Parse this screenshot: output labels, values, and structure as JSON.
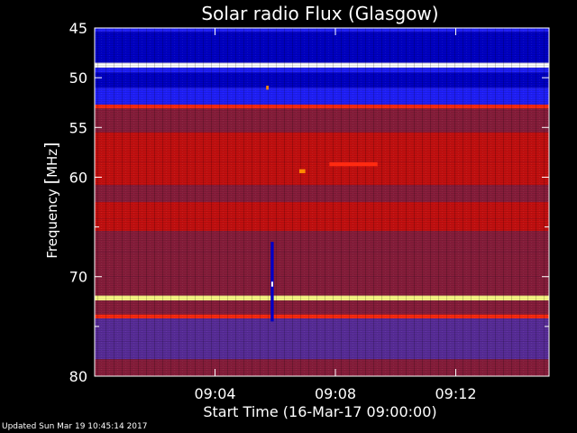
{
  "chart_data": {
    "type": "heatmap",
    "title": "Solar radio Flux (Glasgow)",
    "xlabel": "Start Time (16-Mar-17 09:00:00)",
    "ylabel_prefix": "Frequency ",
    "ylabel_unit": "MHz",
    "x_time_range_minutes": [
      0,
      15.1
    ],
    "y_range_mhz": [
      45,
      80
    ],
    "y_inverted": true,
    "x_ticks": [
      {
        "value": 4,
        "label": "09:04"
      },
      {
        "value": 8,
        "label": "09:08"
      },
      {
        "value": 12,
        "label": "09:12"
      }
    ],
    "y_major_ticks": [
      {
        "value": 45,
        "label": "45"
      },
      {
        "value": 50,
        "label": "50"
      },
      {
        "value": 55,
        "label": "55"
      },
      {
        "value": 60,
        "label": "60"
      },
      {
        "value": 70,
        "label": "70"
      },
      {
        "value": 80,
        "label": "80"
      }
    ],
    "y_minor_ticks": [
      65,
      75
    ],
    "colormap": [
      "#000030",
      "#0000c8",
      "#2020ff",
      "#5a2d9c",
      "#8a1e3c",
      "#c81010",
      "#ff2a10",
      "#ff8800",
      "#ffff88",
      "#ffffff"
    ],
    "bands": [
      {
        "f1": 45.0,
        "f2": 45.4,
        "level": 1.6
      },
      {
        "f1": 45.4,
        "f2": 48.5,
        "level": 1.0
      },
      {
        "f1": 48.5,
        "f2": 49.0,
        "level": 9.0
      },
      {
        "f1": 49.0,
        "f2": 49.5,
        "level": 2.0
      },
      {
        "f1": 49.5,
        "f2": 51.0,
        "level": 1.2
      },
      {
        "f1": 51.0,
        "f2": 52.3,
        "level": 1.6
      },
      {
        "f1": 52.3,
        "f2": 52.7,
        "level": 2.4
      },
      {
        "f1": 52.7,
        "f2": 53.1,
        "level": 6.0
      },
      {
        "f1": 53.1,
        "f2": 55.5,
        "level": 3.8
      },
      {
        "f1": 55.5,
        "f2": 58.5,
        "level": 5.0
      },
      {
        "f1": 58.5,
        "f2": 60.8,
        "level": 5.3
      },
      {
        "f1": 60.8,
        "f2": 62.5,
        "level": 4.3
      },
      {
        "f1": 62.5,
        "f2": 64.2,
        "level": 4.8
      },
      {
        "f1": 64.2,
        "f2": 65.4,
        "level": 5.2
      },
      {
        "f1": 65.4,
        "f2": 67.5,
        "level": 3.6
      },
      {
        "f1": 67.5,
        "f2": 70.0,
        "level": 4.2
      },
      {
        "f1": 70.0,
        "f2": 71.9,
        "level": 4.0
      },
      {
        "f1": 71.9,
        "f2": 72.4,
        "level": 8.2
      },
      {
        "f1": 72.4,
        "f2": 73.8,
        "level": 3.5
      },
      {
        "f1": 73.8,
        "f2": 74.2,
        "level": 5.5
      },
      {
        "f1": 74.2,
        "f2": 76.5,
        "level": 3.3
      },
      {
        "f1": 76.5,
        "f2": 78.3,
        "level": 3.0
      },
      {
        "f1": 78.3,
        "f2": 80.0,
        "level": 4.3
      }
    ],
    "events": [
      {
        "t1": 5.85,
        "t2": 5.95,
        "f1": 66.5,
        "f2": 74.5,
        "level": 0.5
      },
      {
        "t1": 5.87,
        "t2": 5.93,
        "f1": 70.5,
        "f2": 71.0,
        "level": 9.0
      },
      {
        "t1": 5.7,
        "t2": 5.78,
        "f1": 50.8,
        "f2": 51.2,
        "level": 6.5
      },
      {
        "t1": 6.8,
        "t2": 7.0,
        "f1": 59.2,
        "f2": 59.6,
        "level": 7.0
      },
      {
        "t1": 7.8,
        "t2": 9.4,
        "f1": 58.5,
        "f2": 58.9,
        "level": 6.0
      }
    ]
  },
  "footer": {
    "updated": "Updated Sun Mar 19 10:45:14 2017"
  }
}
